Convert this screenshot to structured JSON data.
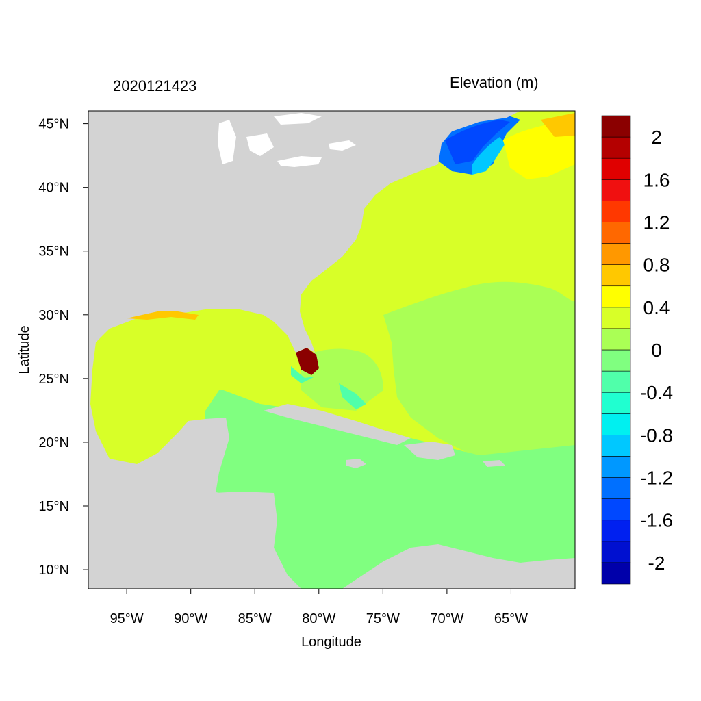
{
  "figure": {
    "time_label": "2020121423",
    "variable_label": "Elevation (m)",
    "xlabel": "Longitude",
    "ylabel": "Latitude"
  },
  "map": {
    "lon_range": [
      -98,
      -60
    ],
    "lat_range": [
      8.5,
      46
    ],
    "x_ticks": [
      {
        "value": -95,
        "label": "95°W"
      },
      {
        "value": -90,
        "label": "90°W"
      },
      {
        "value": -85,
        "label": "85°W"
      },
      {
        "value": -80,
        "label": "80°W"
      },
      {
        "value": -75,
        "label": "75°W"
      },
      {
        "value": -70,
        "label": "70°W"
      },
      {
        "value": -65,
        "label": "65°W"
      }
    ],
    "y_ticks": [
      {
        "value": 45,
        "label": "45°N"
      },
      {
        "value": 40,
        "label": "40°N"
      },
      {
        "value": 35,
        "label": "35°N"
      },
      {
        "value": 30,
        "label": "30°N"
      },
      {
        "value": 25,
        "label": "25°N"
      },
      {
        "value": 20,
        "label": "20°N"
      },
      {
        "value": 15,
        "label": "15°N"
      },
      {
        "value": 10,
        "label": "10°N"
      }
    ],
    "land_color": "#d3d3d3"
  },
  "colorbar": {
    "bins": [
      {
        "color": "#0000aa"
      },
      {
        "color": "#0010d0"
      },
      {
        "color": "#0020f0"
      },
      {
        "color": "#0048ff"
      },
      {
        "color": "#0070ff"
      },
      {
        "color": "#0098ff"
      },
      {
        "color": "#00c8ff"
      },
      {
        "color": "#00f0f0"
      },
      {
        "color": "#20ffd0"
      },
      {
        "color": "#50ffaa"
      },
      {
        "color": "#80ff80"
      },
      {
        "color": "#aaff55"
      },
      {
        "color": "#d8ff28"
      },
      {
        "color": "#ffff00"
      },
      {
        "color": "#ffc800"
      },
      {
        "color": "#ff9800"
      },
      {
        "color": "#ff6800"
      },
      {
        "color": "#ff3800"
      },
      {
        "color": "#f01010"
      },
      {
        "color": "#e00000"
      },
      {
        "color": "#b40000"
      },
      {
        "color": "#8b0000"
      }
    ],
    "labels": [
      {
        "value": 2,
        "label": "2"
      },
      {
        "value": 1.6,
        "label": "1.6"
      },
      {
        "value": 1.2,
        "label": "1.2"
      },
      {
        "value": 0.8,
        "label": "0.8"
      },
      {
        "value": 0.4,
        "label": "0.4"
      },
      {
        "value": 0,
        "label": "0"
      },
      {
        "value": -0.4,
        "label": "-0.4"
      },
      {
        "value": -0.8,
        "label": "-0.8"
      },
      {
        "value": -1.2,
        "label": "-1.2"
      },
      {
        "value": -1.6,
        "label": "-1.6"
      },
      {
        "value": -2,
        "label": "-2"
      }
    ],
    "range": [
      -2.2,
      2.2
    ]
  }
}
